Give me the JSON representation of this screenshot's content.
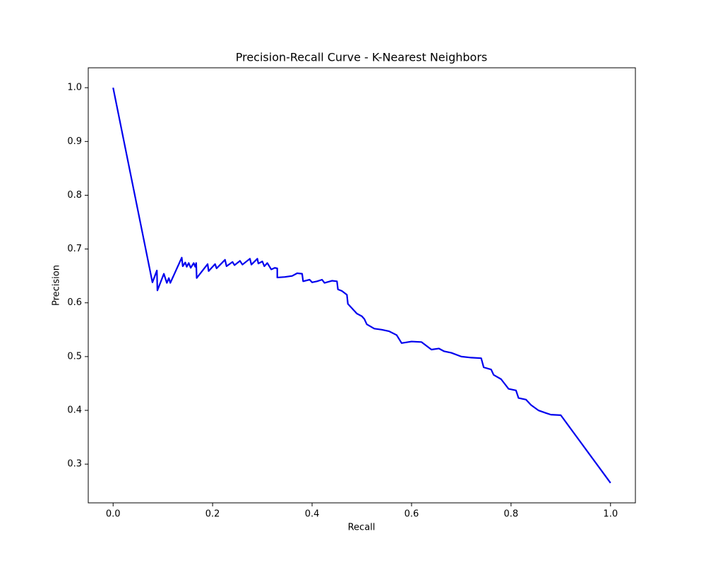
{
  "chart_data": {
    "type": "line",
    "title": "Precision-Recall Curve - K-Nearest Neighbors",
    "xlabel": "Recall",
    "ylabel": "Precision",
    "color": "#0000ee",
    "x": [
      0,
      0.079,
      0.088,
      0.089,
      0.102,
      0.108,
      0.112,
      0.115,
      0.138,
      0.14,
      0.145,
      0.148,
      0.152,
      0.156,
      0.162,
      0.165,
      0.167,
      0.168,
      0.19,
      0.192,
      0.205,
      0.208,
      0.225,
      0.228,
      0.24,
      0.244,
      0.255,
      0.26,
      0.275,
      0.278,
      0.29,
      0.292,
      0.3,
      0.304,
      0.31,
      0.318,
      0.325,
      0.33,
      0.33,
      0.345,
      0.36,
      0.37,
      0.38,
      0.382,
      0.395,
      0.4,
      0.41,
      0.42,
      0.425,
      0.44,
      0.45,
      0.452,
      0.46,
      0.47,
      0.472,
      0.48,
      0.49,
      0.5,
      0.505,
      0.51,
      0.525,
      0.54,
      0.555,
      0.57,
      0.58,
      0.6,
      0.62,
      0.64,
      0.655,
      0.665,
      0.68,
      0.7,
      0.72,
      0.74,
      0.745,
      0.76,
      0.765,
      0.78,
      0.795,
      0.81,
      0.815,
      0.83,
      0.84,
      0.855,
      0.87,
      0.88,
      0.9,
      1.0
    ],
    "values": [
      1.0,
      0.638,
      0.66,
      0.623,
      0.654,
      0.637,
      0.646,
      0.637,
      0.684,
      0.668,
      0.675,
      0.667,
      0.674,
      0.665,
      0.674,
      0.667,
      0.674,
      0.646,
      0.672,
      0.659,
      0.672,
      0.664,
      0.68,
      0.668,
      0.676,
      0.67,
      0.678,
      0.671,
      0.682,
      0.671,
      0.682,
      0.673,
      0.677,
      0.668,
      0.674,
      0.662,
      0.665,
      0.664,
      0.647,
      0.648,
      0.65,
      0.655,
      0.654,
      0.64,
      0.643,
      0.638,
      0.64,
      0.643,
      0.637,
      0.641,
      0.64,
      0.625,
      0.622,
      0.615,
      0.598,
      0.59,
      0.58,
      0.575,
      0.57,
      0.56,
      0.552,
      0.55,
      0.547,
      0.54,
      0.525,
      0.528,
      0.527,
      0.513,
      0.515,
      0.51,
      0.507,
      0.5,
      0.498,
      0.497,
      0.48,
      0.476,
      0.466,
      0.458,
      0.44,
      0.437,
      0.423,
      0.42,
      0.41,
      0.4,
      0.395,
      0.392,
      0.391,
      0.265
    ],
    "xlim": [
      -0.05,
      1.05
    ],
    "ylim": [
      0.228,
      1.037
    ],
    "xticks": [
      {
        "value": 0,
        "label": "0.0"
      },
      0.2,
      0.4,
      0.6,
      0.8,
      {
        "value": 1,
        "label": "1.0"
      }
    ],
    "yticks": [
      0.3,
      0.4,
      0.5,
      0.6,
      0.7,
      0.8,
      0.9,
      {
        "value": 1,
        "label": "1.0"
      }
    ],
    "grid": false
  }
}
